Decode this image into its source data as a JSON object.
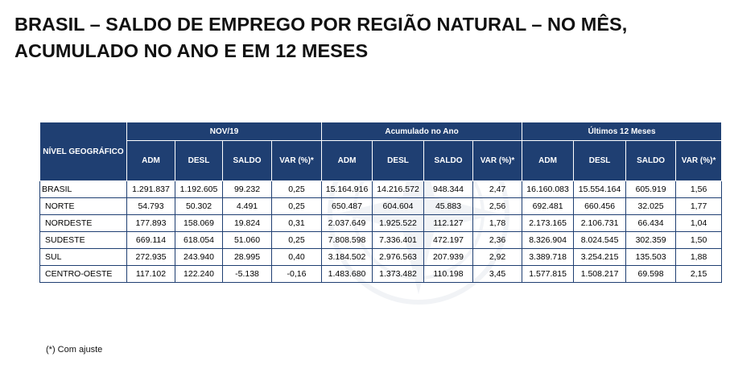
{
  "title": {
    "line1": "BRASIL – SALDO DE EMPREGO POR REGIÃO NATURAL – NO MÊS,",
    "line2": "ACUMULADO NO ANO E EM 12 MESES"
  },
  "table": {
    "geo_header": "NÍVEL GEOGRÁFICO",
    "groups": [
      "NOV/19",
      "Acumulado no Ano",
      "Últimos 12 Meses"
    ],
    "subheaders": [
      "ADM",
      "DESL",
      "SALDO",
      "VAR (%)*"
    ],
    "rows": [
      {
        "name": "BRASIL",
        "cells": [
          "1.291.837",
          "1.192.605",
          "99.232",
          "0,25",
          "15.164.916",
          "14.216.572",
          "948.344",
          "2,47",
          "16.160.083",
          "15.554.164",
          "605.919",
          "1,56"
        ]
      },
      {
        "name": "NORTE",
        "cells": [
          "54.793",
          "50.302",
          "4.491",
          "0,25",
          "650.487",
          "604.604",
          "45.883",
          "2,56",
          "692.481",
          "660.456",
          "32.025",
          "1,77"
        ]
      },
      {
        "name": "NORDESTE",
        "cells": [
          "177.893",
          "158.069",
          "19.824",
          "0,31",
          "2.037.649",
          "1.925.522",
          "112.127",
          "1,78",
          "2.173.165",
          "2.106.731",
          "66.434",
          "1,04"
        ]
      },
      {
        "name": "SUDESTE",
        "cells": [
          "669.114",
          "618.054",
          "51.060",
          "0,25",
          "7.808.598",
          "7.336.401",
          "472.197",
          "2,36",
          "8.326.904",
          "8.024.545",
          "302.359",
          "1,50"
        ]
      },
      {
        "name": "SUL",
        "cells": [
          "272.935",
          "243.940",
          "28.995",
          "0,40",
          "3.184.502",
          "2.976.563",
          "207.939",
          "2,92",
          "3.389.718",
          "3.254.215",
          "135.503",
          "1,88"
        ]
      },
      {
        "name": "CENTRO-OESTE",
        "cells": [
          "117.102",
          "122.240",
          "-5.138",
          "-0,16",
          "1.483.680",
          "1.373.482",
          "110.198",
          "3,45",
          "1.577.815",
          "1.508.217",
          "69.598",
          "2,15"
        ]
      }
    ]
  },
  "footnote": "(*) Com ajuste",
  "colors": {
    "header_bg": "#1f3f72",
    "header_text": "#ffffff",
    "border": "#1f3f72"
  }
}
